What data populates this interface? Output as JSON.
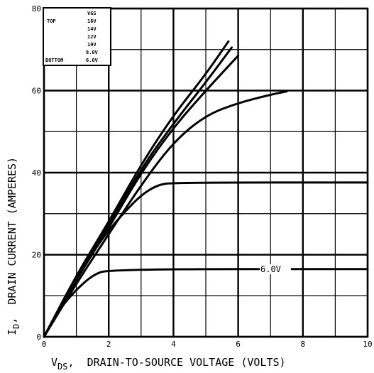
{
  "chart_data": {
    "type": "line",
    "xlabel_main": "V",
    "xlabel_sub": "DS",
    "xlabel_rest": ",  DRAIN-TO-SOURCE VOLTAGE (VOLTS)",
    "ylabel_main": "I",
    "ylabel_sub": "D",
    "ylabel_rest": ",  DRAIN CURRENT (AMPERES)",
    "xlim": [
      0,
      10
    ],
    "ylim": [
      0,
      80
    ],
    "x_ticks": [
      0,
      2,
      4,
      6,
      8,
      10
    ],
    "y_ticks": [
      0,
      20,
      40,
      60,
      80
    ],
    "x_tick_labels": [
      "0",
      "2",
      "4",
      "6",
      "8",
      "10"
    ],
    "y_tick_labels": [
      "0",
      "20",
      "40",
      "60",
      "80"
    ],
    "grid": true,
    "legend": {
      "placement": "top-left",
      "header": "VGS",
      "top_label": "TOP",
      "bottom_label": "BOTTOM",
      "entries": [
        "16V",
        "14V",
        "12V",
        "10V",
        "8.0V",
        "6.0V"
      ]
    },
    "curve_label": "6.0V",
    "series": [
      {
        "points": [
          [
            0,
            0
          ],
          [
            1,
            15
          ],
          [
            2,
            28
          ],
          [
            3,
            42
          ],
          [
            4,
            54
          ],
          [
            5,
            64
          ],
          [
            5.7,
            72
          ]
        ]
      },
      {
        "points": [
          [
            0,
            0
          ],
          [
            1,
            14.5
          ],
          [
            2,
            27
          ],
          [
            3,
            41
          ],
          [
            4,
            52
          ],
          [
            5,
            62
          ],
          [
            5.8,
            70.5
          ]
        ]
      },
      {
        "points": [
          [
            0,
            0
          ],
          [
            1,
            14
          ],
          [
            2,
            26.5
          ],
          [
            3,
            40
          ],
          [
            4,
            51
          ],
          [
            5,
            60
          ],
          [
            6,
            68.5
          ]
        ]
      },
      {
        "points": [
          [
            0,
            0
          ],
          [
            1,
            13
          ],
          [
            2,
            25
          ],
          [
            3,
            37
          ],
          [
            4,
            47.5
          ],
          [
            5,
            54
          ],
          [
            6,
            57
          ],
          [
            7,
            59
          ],
          [
            7.5,
            59.8
          ]
        ]
      },
      {
        "points": [
          [
            0,
            0
          ],
          [
            0.5,
            7
          ],
          [
            1,
            14
          ],
          [
            1.5,
            20.5
          ],
          [
            2,
            26
          ],
          [
            2.5,
            30.5
          ],
          [
            3,
            34.5
          ],
          [
            3.5,
            37
          ],
          [
            4,
            37.6
          ],
          [
            10,
            37.6
          ]
        ]
      },
      {
        "points": [
          [
            0,
            0
          ],
          [
            0.5,
            7
          ],
          [
            1,
            11.5
          ],
          [
            1.5,
            15
          ],
          [
            2,
            16.5
          ],
          [
            10,
            16.5
          ]
        ]
      }
    ]
  }
}
